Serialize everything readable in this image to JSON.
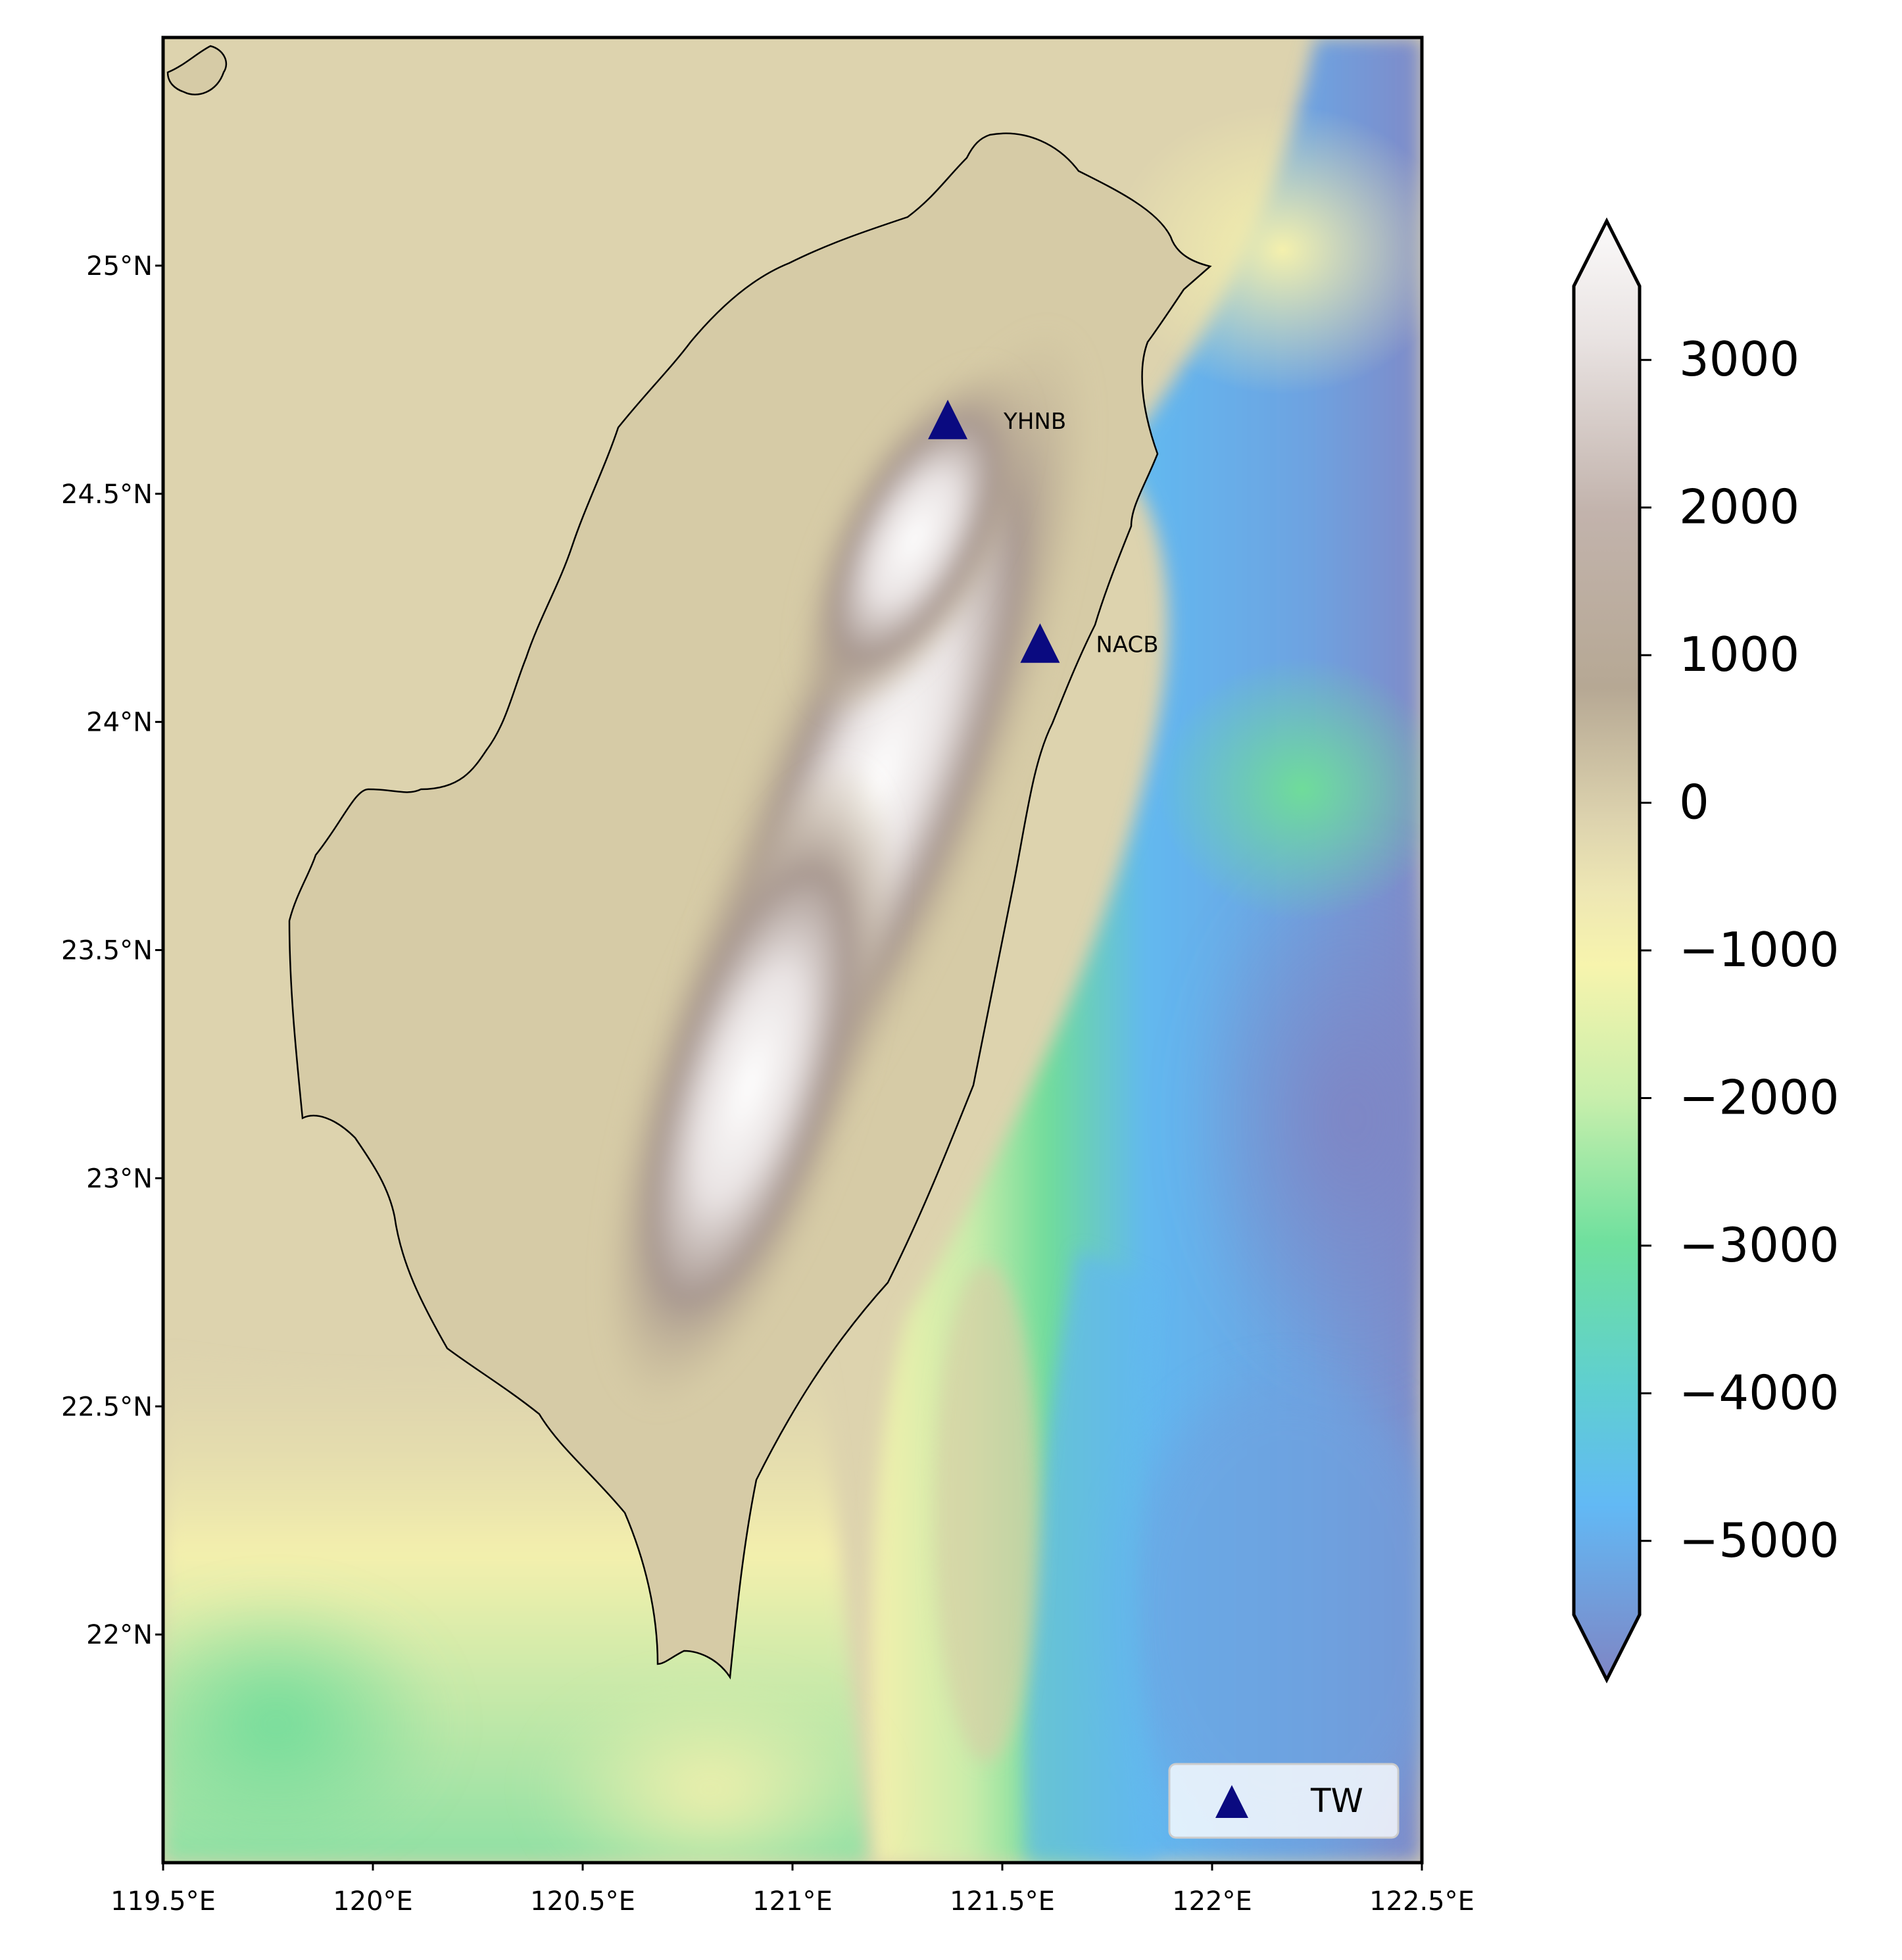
{
  "map": {
    "lon_range": [
      119.5,
      122.5
    ],
    "lat_range": [
      21.5,
      25.5
    ],
    "x_ticks": [
      {
        "value": 119.5,
        "label": "119.5°E"
      },
      {
        "value": 120.0,
        "label": "120°E"
      },
      {
        "value": 120.5,
        "label": "120.5°E"
      },
      {
        "value": 121.0,
        "label": "121°E"
      },
      {
        "value": 121.5,
        "label": "121.5°E"
      },
      {
        "value": 122.0,
        "label": "122°E"
      },
      {
        "value": 122.5,
        "label": "122.5°E"
      }
    ],
    "y_ticks": [
      {
        "value": 22.0,
        "label": "22°N"
      },
      {
        "value": 22.5,
        "label": "22.5°N"
      },
      {
        "value": 23.0,
        "label": "23°N"
      },
      {
        "value": 23.5,
        "label": "23.5°N"
      },
      {
        "value": 24.0,
        "label": "24°N"
      },
      {
        "value": 24.5,
        "label": "24.5°N"
      },
      {
        "value": 25.0,
        "label": "25°N"
      }
    ],
    "stations": [
      {
        "name": "YHNB",
        "lon": 121.37,
        "lat": 24.66
      },
      {
        "name": "NACB",
        "lon": 121.59,
        "lat": 24.17
      }
    ],
    "legend": {
      "label": "TW",
      "position": "lower-right"
    },
    "colormap": "terrain",
    "colors": {
      "land_low": "#d6cba6",
      "ridge": "#9a8a82",
      "peak": "#f7f5f5",
      "shelf": "#f4f0ad",
      "slope": "#6fdc9a",
      "deep": "#62b8f0",
      "abyss": "#7f85c4",
      "station": "#0a0a80"
    }
  },
  "colorbar": {
    "range": [
      -5500,
      3500
    ],
    "extend": "both",
    "ticks": [
      {
        "value": 3000,
        "label": "3000"
      },
      {
        "value": 2000,
        "label": "2000"
      },
      {
        "value": 1000,
        "label": "1000"
      },
      {
        "value": 0,
        "label": "0"
      },
      {
        "value": -1000,
        "label": "−1000"
      },
      {
        "value": -2000,
        "label": "−2000"
      },
      {
        "value": -3000,
        "label": "−3000"
      },
      {
        "value": -4000,
        "label": "−4000"
      },
      {
        "value": -5000,
        "label": "−5000"
      }
    ]
  }
}
